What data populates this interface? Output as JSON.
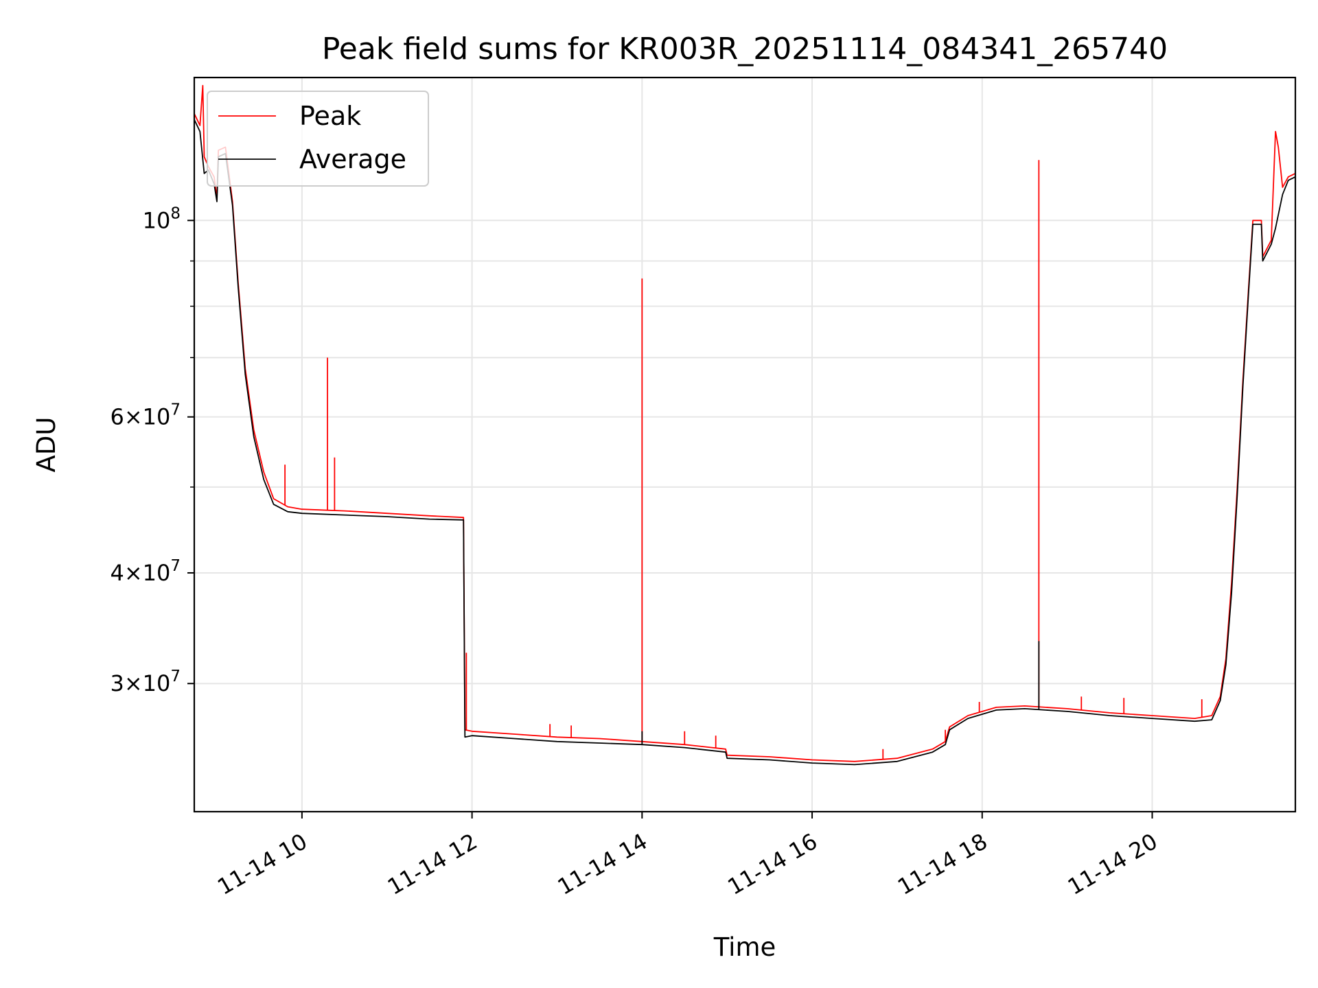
{
  "chart_data": {
    "type": "line",
    "title": "Peak field sums for KR003R_20251114_084341_265740",
    "xlabel": "Time",
    "ylabel": "ADU",
    "yscale": "log",
    "xlim": [
      "2025-11-14 08:44",
      "2025-11-14 21:41"
    ],
    "ylim": [
      21500000,
      145000000
    ],
    "grid": true,
    "legend_position": "upper left",
    "x_ticks": [
      {
        "value": "2025-11-14 10:00",
        "label": "11-14 10"
      },
      {
        "value": "2025-11-14 12:00",
        "label": "11-14 12"
      },
      {
        "value": "2025-11-14 14:00",
        "label": "11-14 14"
      },
      {
        "value": "2025-11-14 16:00",
        "label": "11-14 16"
      },
      {
        "value": "2025-11-14 18:00",
        "label": "11-14 18"
      },
      {
        "value": "2025-11-14 20:00",
        "label": "11-14 20"
      }
    ],
    "y_ticks": [
      {
        "value": 30000000,
        "base": "3",
        "exp": "7"
      },
      {
        "value": 40000000,
        "base": "4",
        "exp": "7"
      },
      {
        "value": 60000000,
        "base": "6",
        "exp": "7"
      },
      {
        "value": 100000000,
        "base": "",
        "exp": "8"
      }
    ],
    "y_minor_ticks": [
      20000000,
      50000000,
      70000000,
      80000000,
      90000000,
      200000000
    ],
    "series": [
      {
        "name": "Peak",
        "color": "#ff0000",
        "points": [
          [
            "2025-11-14 08:44",
            132000000
          ],
          [
            "2025-11-14 08:48",
            128000000
          ],
          [
            "2025-11-14 08:50",
            142000000
          ],
          [
            "2025-11-14 08:51",
            118000000
          ],
          [
            "2025-11-14 08:54",
            115000000
          ],
          [
            "2025-11-14 08:58",
            112000000
          ],
          [
            "2025-11-14 09:00",
            106000000
          ],
          [
            "2025-11-14 09:01",
            120000000
          ],
          [
            "2025-11-14 09:06",
            121000000
          ],
          [
            "2025-11-14 09:11",
            105000000
          ],
          [
            "2025-11-14 09:15",
            85000000
          ],
          [
            "2025-11-14 09:20",
            68000000
          ],
          [
            "2025-11-14 09:26",
            58000000
          ],
          [
            "2025-11-14 09:33",
            52000000
          ],
          [
            "2025-11-14 09:40",
            48500000
          ],
          [
            "2025-11-14 09:50",
            47500000
          ],
          [
            "2025-11-14 10:00",
            47200000
          ],
          [
            "2025-11-14 10:30",
            47000000
          ],
          [
            "2025-11-14 11:00",
            46700000
          ],
          [
            "2025-11-14 11:30",
            46400000
          ],
          [
            "2025-11-14 11:54",
            46200000
          ],
          [
            "2025-11-14 11:55",
            26600000
          ],
          [
            "2025-11-14 12:00",
            26500000
          ],
          [
            "2025-11-14 12:30",
            26300000
          ],
          [
            "2025-11-14 13:00",
            26100000
          ],
          [
            "2025-11-14 13:30",
            26000000
          ],
          [
            "2025-11-14 14:00",
            25800000
          ],
          [
            "2025-11-14 14:30",
            25600000
          ],
          [
            "2025-11-14 14:59",
            25300000
          ],
          [
            "2025-11-14 15:00",
            24900000
          ],
          [
            "2025-11-14 15:30",
            24800000
          ],
          [
            "2025-11-14 16:00",
            24600000
          ],
          [
            "2025-11-14 16:30",
            24500000
          ],
          [
            "2025-11-14 17:00",
            24700000
          ],
          [
            "2025-11-14 17:25",
            25300000
          ],
          [
            "2025-11-14 17:34",
            25800000
          ],
          [
            "2025-11-14 17:37",
            26800000
          ],
          [
            "2025-11-14 17:50",
            27600000
          ],
          [
            "2025-11-14 18:10",
            28200000
          ],
          [
            "2025-11-14 18:30",
            28300000
          ],
          [
            "2025-11-14 19:00",
            28100000
          ],
          [
            "2025-11-14 19:30",
            27800000
          ],
          [
            "2025-11-14 20:00",
            27600000
          ],
          [
            "2025-11-14 20:30",
            27400000
          ],
          [
            "2025-11-14 20:42",
            27600000
          ],
          [
            "2025-11-14 20:48",
            29000000
          ],
          [
            "2025-11-14 20:52",
            32000000
          ],
          [
            "2025-11-14 20:56",
            39000000
          ],
          [
            "2025-11-14 21:00",
            50000000
          ],
          [
            "2025-11-14 21:04",
            66000000
          ],
          [
            "2025-11-14 21:08",
            84000000
          ],
          [
            "2025-11-14 21:11",
            100000000
          ],
          [
            "2025-11-14 21:17",
            100000000
          ],
          [
            "2025-11-14 21:18",
            91000000
          ],
          [
            "2025-11-14 21:24",
            95000000
          ],
          [
            "2025-11-14 21:27",
            126000000
          ],
          [
            "2025-11-14 21:29",
            121000000
          ],
          [
            "2025-11-14 21:32",
            109000000
          ],
          [
            "2025-11-14 21:36",
            112000000
          ],
          [
            "2025-11-14 21:41",
            113000000
          ]
        ],
        "spikes": [
          [
            "2025-11-14 09:48",
            53000000
          ],
          [
            "2025-11-14 10:18",
            70000000
          ],
          [
            "2025-11-14 10:23",
            54000000
          ],
          [
            "2025-11-14 11:56",
            32500000
          ],
          [
            "2025-11-14 12:55",
            27000000
          ],
          [
            "2025-11-14 13:10",
            26900000
          ],
          [
            "2025-11-14 14:00",
            86000000
          ],
          [
            "2025-11-14 14:30",
            26500000
          ],
          [
            "2025-11-14 14:52",
            26200000
          ],
          [
            "2025-11-14 16:50",
            25300000
          ],
          [
            "2025-11-14 17:34",
            26600000
          ],
          [
            "2025-11-14 17:58",
            28600000
          ],
          [
            "2025-11-14 18:40",
            117000000
          ],
          [
            "2025-11-14 19:10",
            29000000
          ],
          [
            "2025-11-14 19:40",
            28900000
          ],
          [
            "2025-11-14 20:35",
            28800000
          ]
        ]
      },
      {
        "name": "Average",
        "color": "#000000",
        "points": [
          [
            "2025-11-14 08:44",
            130000000
          ],
          [
            "2025-11-14 08:48",
            126000000
          ],
          [
            "2025-11-14 08:51",
            113000000
          ],
          [
            "2025-11-14 08:54",
            114000000
          ],
          [
            "2025-11-14 08:58",
            110000000
          ],
          [
            "2025-11-14 09:00",
            105000000
          ],
          [
            "2025-11-14 09:01",
            118000000
          ],
          [
            "2025-11-14 09:06",
            119000000
          ],
          [
            "2025-11-14 09:11",
            104000000
          ],
          [
            "2025-11-14 09:15",
            84000000
          ],
          [
            "2025-11-14 09:20",
            67000000
          ],
          [
            "2025-11-14 09:26",
            57000000
          ],
          [
            "2025-11-14 09:33",
            51000000
          ],
          [
            "2025-11-14 09:40",
            47800000
          ],
          [
            "2025-11-14 09:50",
            46900000
          ],
          [
            "2025-11-14 10:00",
            46700000
          ],
          [
            "2025-11-14 10:30",
            46500000
          ],
          [
            "2025-11-14 11:00",
            46300000
          ],
          [
            "2025-11-14 11:30",
            46000000
          ],
          [
            "2025-11-14 11:54",
            45900000
          ],
          [
            "2025-11-14 11:55",
            26100000
          ],
          [
            "2025-11-14 12:00",
            26200000
          ],
          [
            "2025-11-14 12:30",
            26000000
          ],
          [
            "2025-11-14 13:00",
            25800000
          ],
          [
            "2025-11-14 13:30",
            25700000
          ],
          [
            "2025-11-14 14:00",
            25600000
          ],
          [
            "2025-11-14 14:30",
            25400000
          ],
          [
            "2025-11-14 14:59",
            25100000
          ],
          [
            "2025-11-14 15:00",
            24700000
          ],
          [
            "2025-11-14 15:30",
            24600000
          ],
          [
            "2025-11-14 16:00",
            24400000
          ],
          [
            "2025-11-14 16:30",
            24300000
          ],
          [
            "2025-11-14 17:00",
            24500000
          ],
          [
            "2025-11-14 17:25",
            25100000
          ],
          [
            "2025-11-14 17:34",
            25600000
          ],
          [
            "2025-11-14 17:37",
            26600000
          ],
          [
            "2025-11-14 17:50",
            27400000
          ],
          [
            "2025-11-14 18:10",
            28000000
          ],
          [
            "2025-11-14 18:30",
            28100000
          ],
          [
            "2025-11-14 19:00",
            27900000
          ],
          [
            "2025-11-14 19:30",
            27600000
          ],
          [
            "2025-11-14 20:00",
            27400000
          ],
          [
            "2025-11-14 20:30",
            27200000
          ],
          [
            "2025-11-14 20:42",
            27300000
          ],
          [
            "2025-11-14 20:48",
            28700000
          ],
          [
            "2025-11-14 20:52",
            31500000
          ],
          [
            "2025-11-14 20:56",
            38000000
          ],
          [
            "2025-11-14 21:00",
            49000000
          ],
          [
            "2025-11-14 21:04",
            65000000
          ],
          [
            "2025-11-14 21:08",
            83000000
          ],
          [
            "2025-11-14 21:11",
            99000000
          ],
          [
            "2025-11-14 21:17",
            99000000
          ],
          [
            "2025-11-14 21:18",
            90000000
          ],
          [
            "2025-11-14 21:24",
            94000000
          ],
          [
            "2025-11-14 21:27",
            98000000
          ],
          [
            "2025-11-14 21:32",
            107000000
          ],
          [
            "2025-11-14 21:36",
            111000000
          ],
          [
            "2025-11-14 21:41",
            112000000
          ]
        ],
        "spikes": [
          [
            "2025-11-14 14:00",
            26500000
          ],
          [
            "2025-11-14 18:40",
            33500000
          ]
        ]
      }
    ]
  }
}
